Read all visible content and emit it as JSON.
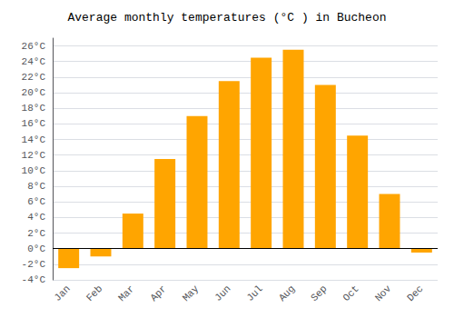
{
  "chart_data": {
    "type": "bar",
    "title": "Average monthly temperatures (°C ) in Bucheon",
    "categories": [
      "Jan",
      "Feb",
      "Mar",
      "Apr",
      "May",
      "Jun",
      "Jul",
      "Aug",
      "Sep",
      "Oct",
      "Nov",
      "Dec"
    ],
    "values": [
      -2.5,
      -1.0,
      4.5,
      11.5,
      17.0,
      21.5,
      24.5,
      25.5,
      21.0,
      14.5,
      7.0,
      -0.5
    ],
    "color": "#FFA500",
    "ylim": [
      -4,
      27
    ],
    "yticks": [
      {
        "value": -4,
        "label": "-4°C"
      },
      {
        "value": -2,
        "label": "-2°C"
      },
      {
        "value": 0,
        "label": "0°C"
      },
      {
        "value": 2,
        "label": "2°C"
      },
      {
        "value": 4,
        "label": "4°C"
      },
      {
        "value": 6,
        "label": "6°C"
      },
      {
        "value": 8,
        "label": "8°C"
      },
      {
        "value": 10,
        "label": "10°C"
      },
      {
        "value": 12,
        "label": "12°C"
      },
      {
        "value": 14,
        "label": "14°C"
      },
      {
        "value": 16,
        "label": "16°C"
      },
      {
        "value": 18,
        "label": "18°C"
      },
      {
        "value": 20,
        "label": "20°C"
      },
      {
        "value": 22,
        "label": "22°C"
      },
      {
        "value": 24,
        "label": "24°C"
      },
      {
        "value": 26,
        "label": "26°C"
      }
    ],
    "grid": true
  }
}
